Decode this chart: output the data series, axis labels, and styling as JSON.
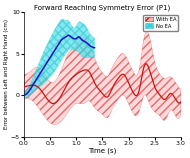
{
  "title": "Forward Reaching Symmetry Error (P1)",
  "xlabel": "Time (s)",
  "ylabel": "Error between Left and Right Hand (cm)",
  "xlim": [
    0,
    3
  ],
  "ylim": [
    -5,
    10
  ],
  "yticks": [
    -5,
    0,
    5,
    10
  ],
  "xticks": [
    0,
    0.5,
    1,
    1.5,
    2,
    2.5,
    3
  ],
  "blue_color": "#1111cc",
  "blue_fill": "#44ddee",
  "red_color": "#cc1111",
  "red_fill": "#ffbbbb",
  "red_mean_t": [
    0.0,
    0.15,
    0.3,
    0.45,
    0.55,
    0.7,
    0.85,
    1.0,
    1.15,
    1.25,
    1.35,
    1.5,
    1.6,
    1.7,
    1.8,
    1.9,
    2.0,
    2.1,
    2.2,
    2.3,
    2.4,
    2.5,
    2.6,
    2.7,
    2.8,
    2.9,
    3.0
  ],
  "red_mean_y": [
    1.0,
    1.2,
    0.8,
    -0.5,
    -1.0,
    -0.2,
    1.5,
    2.5,
    3.0,
    2.8,
    1.5,
    0.2,
    -0.2,
    1.0,
    2.0,
    2.5,
    1.5,
    0.2,
    0.5,
    3.5,
    3.0,
    1.0,
    0.0,
    -0.5,
    0.2,
    -0.5,
    -0.8
  ],
  "red_std_y": [
    1.5,
    1.8,
    2.5,
    2.5,
    2.5,
    3.0,
    3.5,
    3.5,
    4.0,
    3.5,
    3.0,
    2.5,
    2.5,
    2.5,
    2.5,
    2.5,
    2.5,
    2.5,
    2.5,
    3.5,
    4.0,
    3.0,
    2.5,
    2.5,
    2.0,
    2.0,
    1.5
  ],
  "blue_mean_t": [
    0.0,
    0.1,
    0.2,
    0.3,
    0.4,
    0.5,
    0.6,
    0.65,
    0.7,
    0.75,
    0.8,
    0.85,
    0.9,
    0.95,
    1.0,
    1.05,
    1.1,
    1.15,
    1.2,
    1.25,
    1.3,
    1.35
  ],
  "blue_mean_y": [
    0.0,
    0.5,
    1.5,
    2.5,
    3.5,
    4.5,
    5.5,
    6.0,
    6.5,
    6.8,
    7.0,
    7.2,
    7.0,
    6.8,
    6.8,
    7.0,
    6.7,
    6.5,
    6.3,
    6.0,
    5.8,
    5.7
  ],
  "blue_std_y": [
    0.3,
    0.6,
    1.0,
    1.5,
    2.0,
    2.3,
    2.5,
    2.5,
    2.5,
    2.3,
    2.0,
    1.8,
    1.5,
    1.3,
    1.5,
    1.8,
    2.0,
    2.0,
    1.8,
    1.5,
    1.3,
    1.2
  ]
}
